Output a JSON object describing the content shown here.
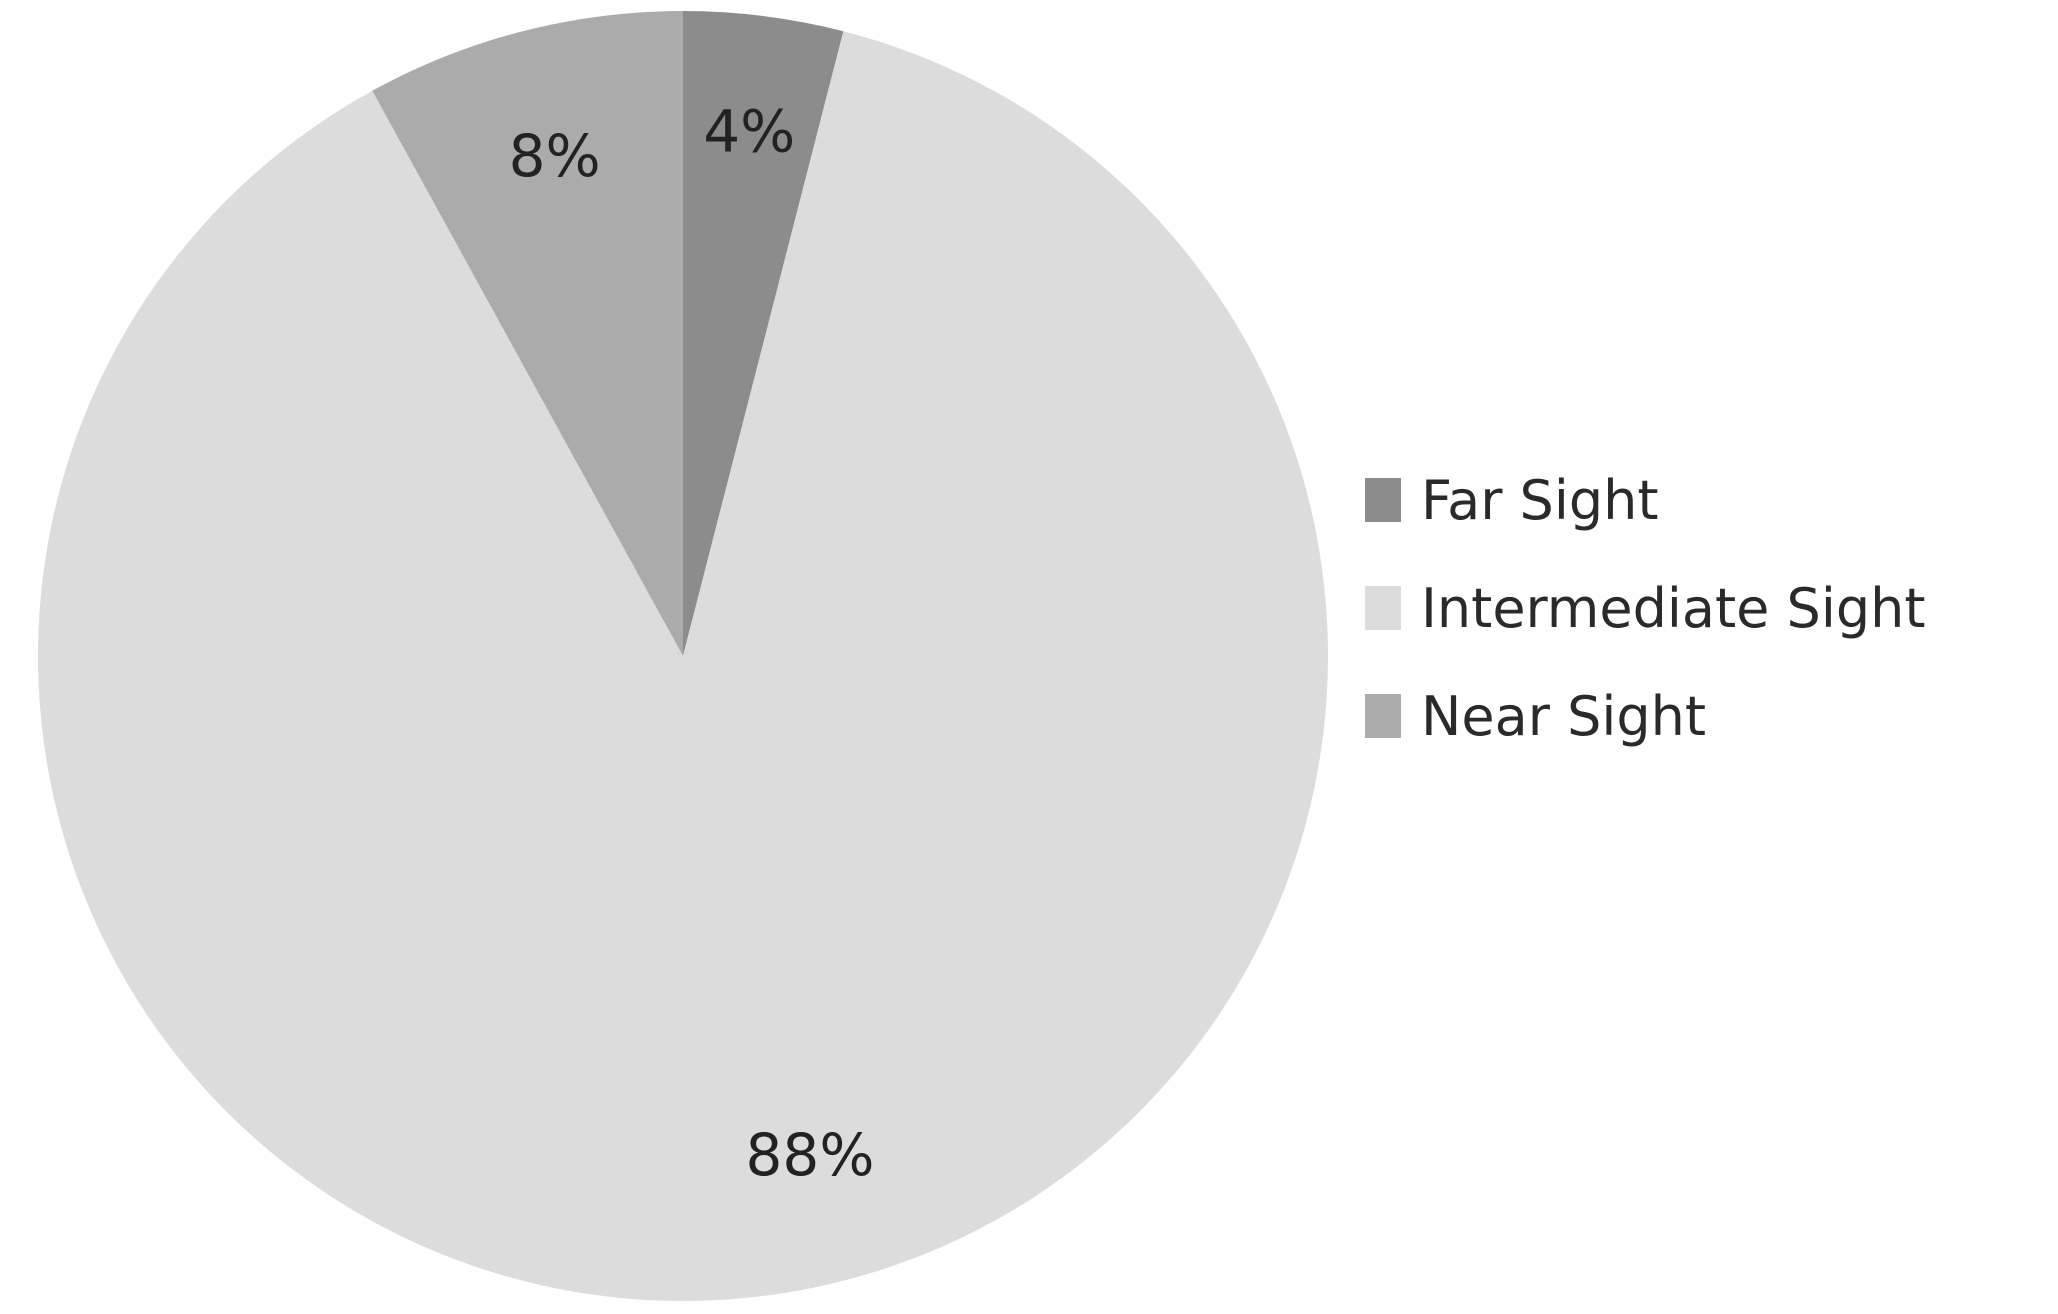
{
  "chart_data": {
    "type": "pie",
    "title": "",
    "start": "top",
    "direction": "clockwise",
    "legend_position": "right",
    "slices": [
      {
        "name": "Far Sight",
        "value": 4,
        "label": "4%",
        "color": "#8c8c8c"
      },
      {
        "name": "Intermediate Sight",
        "value": 88,
        "label": "88%",
        "color": "#dcdcdc"
      },
      {
        "name": "Near Sight",
        "value": 8,
        "label": "8%",
        "color": "#ababab"
      }
    ]
  }
}
